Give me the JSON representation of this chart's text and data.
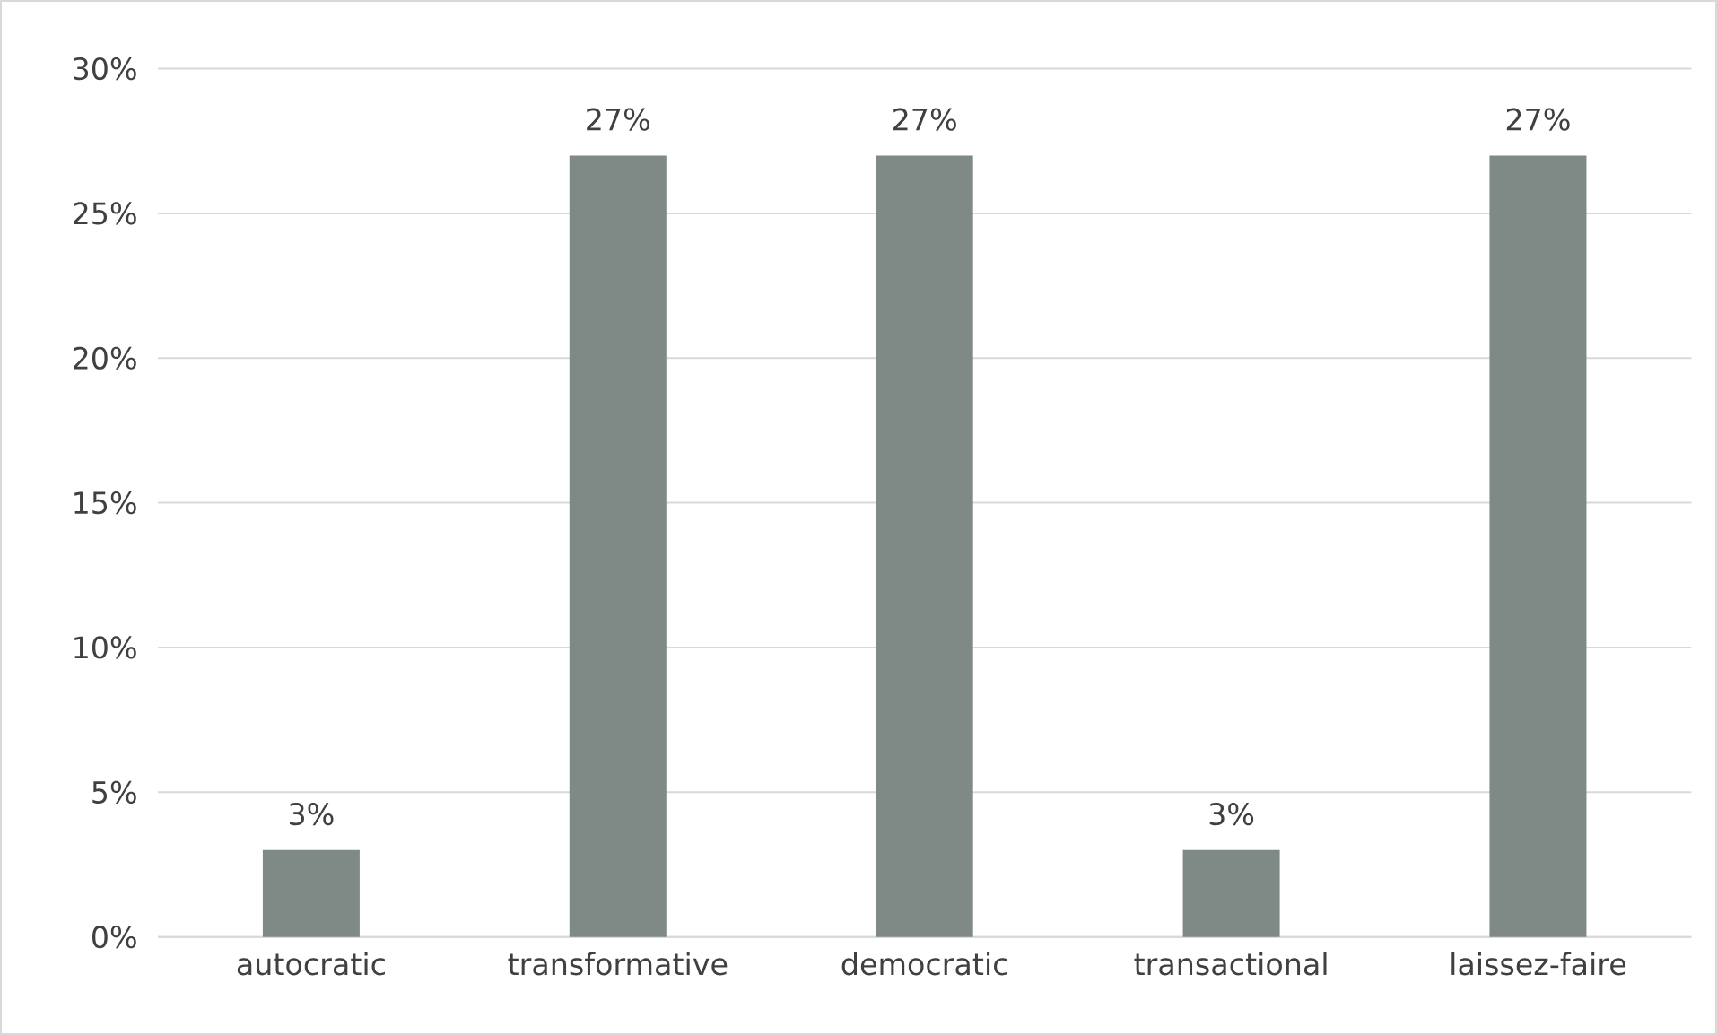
{
  "chart_data": {
    "type": "bar",
    "categories": [
      "autocratic",
      "transformative",
      "democratic",
      "transactional",
      "laissez-faire"
    ],
    "values": [
      3,
      27,
      27,
      3,
      27
    ],
    "value_labels": [
      "3%",
      "27%",
      "27%",
      "3%",
      "27%"
    ],
    "color": "#7f8a87",
    "ylim": [
      0,
      30
    ],
    "yticks": [
      {
        "value": 0,
        "label": "0%"
      },
      {
        "value": 5,
        "label": "5%"
      },
      {
        "value": 10,
        "label": "10%"
      },
      {
        "value": 15,
        "label": "15%"
      },
      {
        "value": 20,
        "label": "20%"
      },
      {
        "value": 25,
        "label": "25%"
      },
      {
        "value": 30,
        "label": "30%"
      }
    ],
    "grid": "y"
  }
}
